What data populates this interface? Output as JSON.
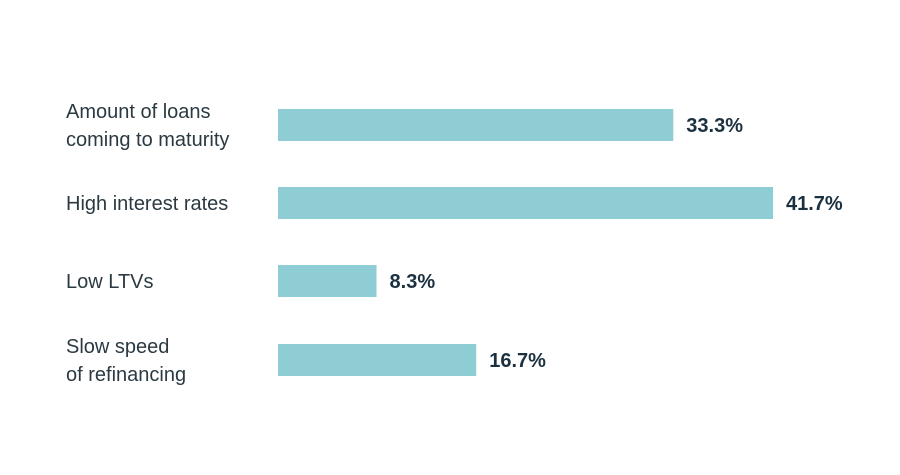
{
  "chart_data": {
    "type": "bar",
    "orientation": "horizontal",
    "title": "",
    "xlabel": "",
    "ylabel": "",
    "categories": [
      [
        "Amount of loans",
        "coming to maturity"
      ],
      [
        "High interest rates"
      ],
      [
        "Low LTVs"
      ],
      [
        "Slow speed",
        "of refinancing"
      ]
    ],
    "values": [
      33.3,
      41.7,
      8.3,
      16.7
    ],
    "labels": [
      "33.3%",
      "41.7%",
      "8.3%",
      "16.7%"
    ],
    "xlim": [
      0,
      41.7
    ],
    "grid": false,
    "bar_color": "#8ecdd3",
    "label_color": "#1c3140"
  }
}
